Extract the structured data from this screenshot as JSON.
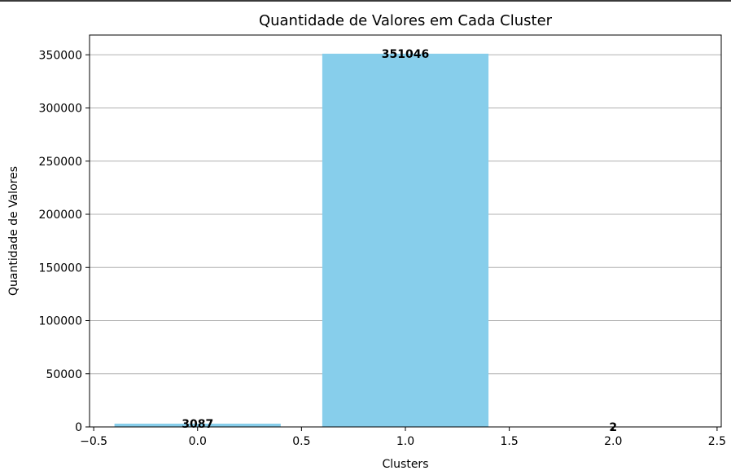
{
  "chart_data": {
    "type": "bar",
    "title": "Quantidade de Valores em Cada Cluster",
    "xlabel": "Clusters",
    "ylabel": "Quantidade de Valores",
    "categories": [
      0,
      1,
      2
    ],
    "values": [
      3087,
      351046,
      2
    ],
    "bar_labels": [
      "3087",
      "351046",
      "2"
    ],
    "bar_width": 0.8,
    "xlim": [
      -0.52,
      2.52
    ],
    "ylim": [
      0,
      368598
    ],
    "x_ticks": [
      -0.5,
      0.0,
      0.5,
      1.0,
      1.5,
      2.0,
      2.5
    ],
    "x_tick_labels": [
      "−0.5",
      "0.0",
      "0.5",
      "1.0",
      "1.5",
      "2.0",
      "2.5"
    ],
    "y_ticks": [
      0,
      50000,
      100000,
      150000,
      200000,
      250000,
      300000,
      350000
    ],
    "y_tick_labels": [
      "0",
      "50000",
      "100000",
      "150000",
      "200000",
      "250000",
      "300000",
      "350000"
    ],
    "grid": "y",
    "colors": {
      "bar": "#87ceeb",
      "grid": "#b0b0b0",
      "axis": "#000000"
    }
  }
}
